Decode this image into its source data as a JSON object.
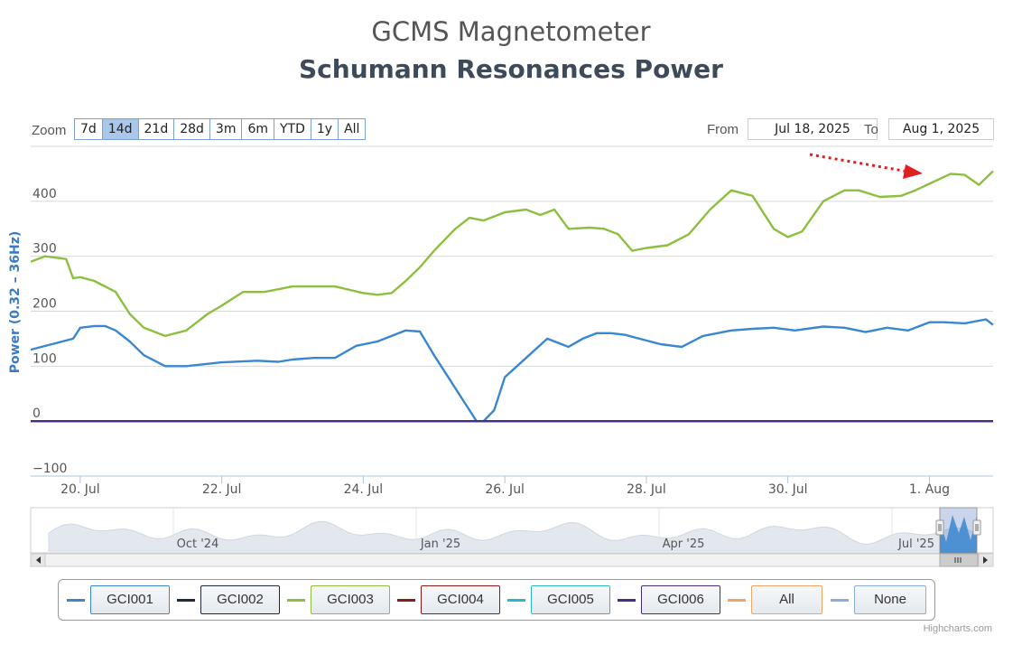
{
  "chart_data": {
    "type": "line",
    "title": "GCMS Magnetometer",
    "subtitle": "Schumann Resonances Power",
    "ylabel": "Power (0.32 – 36Hz)",
    "xlabel": "",
    "ylim": [
      -100,
      500
    ],
    "y_ticks": [
      "−100",
      "0",
      "100",
      "200",
      "300",
      "400"
    ],
    "y_tick_values": [
      -100,
      0,
      100,
      200,
      300,
      400
    ],
    "xlim": [
      19.3,
      32.9
    ],
    "x_ticks": [
      "20. Jul",
      "22. Jul",
      "24. Jul",
      "26. Jul",
      "28. Jul",
      "30. Jul",
      "1. Aug"
    ],
    "x_tick_values": [
      20,
      22,
      24,
      26,
      28,
      30,
      32
    ],
    "grid": true,
    "series": [
      {
        "name": "GCI001",
        "color": "#3a87d1",
        "x": [
          19.3,
          19.6,
          19.9,
          20.0,
          20.2,
          20.35,
          20.5,
          20.7,
          20.9,
          21.2,
          21.5,
          22.0,
          22.5,
          22.8,
          23.0,
          23.3,
          23.6,
          23.9,
          24.2,
          24.4,
          24.6,
          24.8,
          25.0,
          25.3,
          25.5,
          25.6,
          25.7,
          25.85,
          26.0,
          26.3,
          26.6,
          26.9,
          27.1,
          27.3,
          27.5,
          27.7,
          27.9,
          28.2,
          28.5,
          28.8,
          29.2,
          29.5,
          29.8,
          30.1,
          30.5,
          30.8,
          31.1,
          31.4,
          31.7,
          32.0,
          32.2,
          32.5,
          32.8,
          32.9
        ],
        "y": [
          130,
          140,
          150,
          170,
          173,
          173,
          165,
          145,
          120,
          100,
          100,
          107,
          110,
          108,
          112,
          115,
          115,
          137,
          145,
          155,
          165,
          163,
          120,
          60,
          20,
          0,
          0,
          20,
          80,
          115,
          150,
          135,
          150,
          160,
          160,
          157,
          150,
          140,
          135,
          155,
          165,
          168,
          170,
          165,
          172,
          170,
          162,
          170,
          165,
          180,
          180,
          178,
          185,
          175
        ]
      },
      {
        "name": "GCI002",
        "color": "#1f2a3a",
        "x": [
          19.3,
          32.9
        ],
        "y": [
          0,
          0
        ]
      },
      {
        "name": "GCI003",
        "color": "#8cbf3f",
        "x": [
          19.3,
          19.5,
          19.8,
          19.9,
          20.0,
          20.2,
          20.5,
          20.7,
          20.9,
          21.2,
          21.5,
          21.8,
          22.0,
          22.3,
          22.6,
          22.8,
          23.0,
          23.3,
          23.6,
          24.0,
          24.2,
          24.4,
          24.6,
          24.8,
          25.0,
          25.3,
          25.5,
          25.7,
          26.0,
          26.3,
          26.5,
          26.7,
          26.9,
          27.2,
          27.4,
          27.6,
          27.8,
          28.0,
          28.3,
          28.6,
          28.9,
          29.2,
          29.5,
          29.8,
          30.0,
          30.2,
          30.5,
          30.8,
          31.0,
          31.3,
          31.6,
          31.8,
          32.0,
          32.3,
          32.5,
          32.7,
          32.9
        ],
        "y": [
          290,
          300,
          295,
          260,
          262,
          255,
          235,
          195,
          170,
          155,
          165,
          195,
          210,
          235,
          235,
          240,
          245,
          245,
          245,
          233,
          230,
          233,
          255,
          280,
          310,
          350,
          370,
          365,
          380,
          385,
          375,
          385,
          350,
          352,
          350,
          340,
          310,
          315,
          320,
          340,
          385,
          420,
          410,
          350,
          335,
          345,
          400,
          420,
          420,
          408,
          410,
          420,
          432,
          450,
          448,
          430,
          455
        ]
      },
      {
        "name": "GCI004",
        "color": "#8b1a1a",
        "x": [
          19.3,
          32.9
        ],
        "y": [
          0,
          0
        ]
      },
      {
        "name": "GCI005",
        "color": "#2bb7c9",
        "x": [
          19.3,
          32.9
        ],
        "y": [
          0,
          0
        ]
      },
      {
        "name": "GCI006",
        "color": "#4b2d80",
        "x": [
          19.3,
          32.9
        ],
        "y": [
          0,
          0
        ]
      }
    ],
    "navigator": {
      "labels": [
        "Oct '24",
        "Jan '25",
        "Apr '25",
        "Jul '25"
      ]
    }
  },
  "range_selector": {
    "zoom_label": "Zoom",
    "buttons": [
      "7d",
      "14d",
      "21d",
      "28d",
      "3m",
      "6m",
      "YTD",
      "1y",
      "All"
    ],
    "active_index": 1,
    "from_label": "From",
    "from_value": "Jul 18, 2025",
    "to_label": "To",
    "to_value": "Aug 1, 2025"
  },
  "legend": {
    "items": [
      {
        "label": "GCI001",
        "color": "#3a87d1"
      },
      {
        "label": "GCI002",
        "color": "#1f2a3a"
      },
      {
        "label": "GCI003",
        "color": "#8cbf3f"
      },
      {
        "label": "GCI004",
        "color": "#8b1a1a"
      },
      {
        "label": "GCI005",
        "color": "#2bb7c9"
      },
      {
        "label": "GCI006",
        "color": "#4b2d80"
      },
      {
        "label": "All",
        "color": "#f0a46a"
      },
      {
        "label": "None",
        "color": "#8aaee0"
      }
    ]
  },
  "credits": "Highcharts.com",
  "annotation_color": "#e02020"
}
